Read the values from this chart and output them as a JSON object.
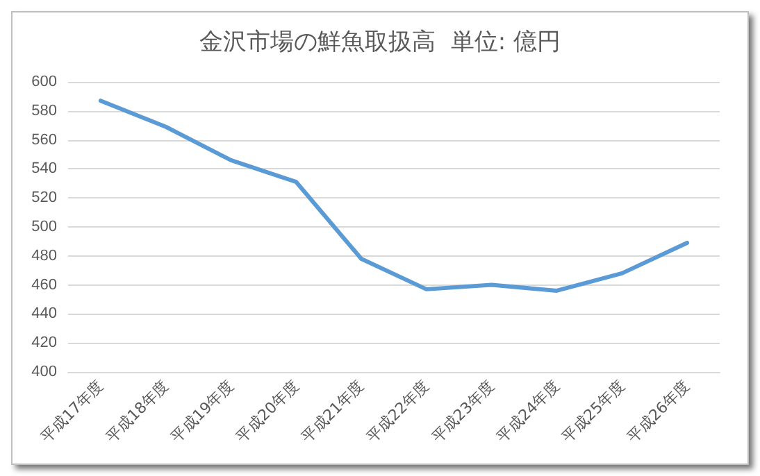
{
  "chart_data": {
    "type": "line",
    "title": "金沢市場の鮮魚取扱高  単位: 億円",
    "categories": [
      "平成17年度",
      "平成18年度",
      "平成19年度",
      "平成20年度",
      "平成21年度",
      "平成22年度",
      "平成23年度",
      "平成24年度",
      "平成25年度",
      "平成26年度"
    ],
    "series": [
      {
        "color": "#5b9bd5",
        "values": [
          587,
          569,
          546,
          531,
          478,
          457,
          460,
          456,
          468,
          489
        ]
      }
    ],
    "ylim": [
      400,
      600
    ],
    "yticks": [
      400,
      420,
      440,
      460,
      480,
      500,
      520,
      540,
      560,
      580,
      600
    ],
    "grid": "y",
    "marker": "none",
    "line_style": "solid"
  }
}
